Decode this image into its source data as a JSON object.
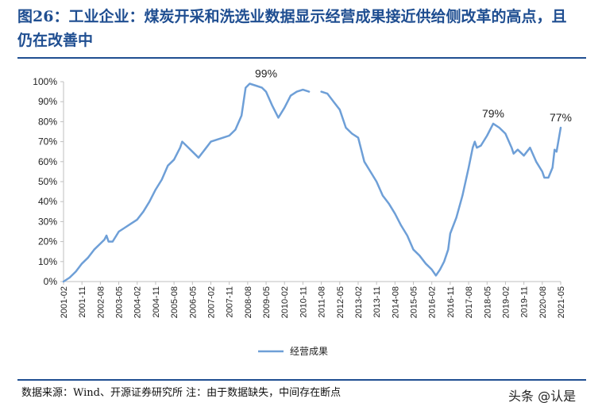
{
  "header": {
    "title_line1": "图26：工业企业：煤炭开采和洗选业数据显示经营成果接近供给侧改革的高点，且",
    "title_line2": "仍在改善中"
  },
  "footer": {
    "source": "数据来源：Wind、开源证券研究所 注：由于数据缺失，中间存在断点",
    "watermark": "头条 @认是"
  },
  "colors": {
    "line": "#6e9fd7",
    "title": "#1f4e91",
    "axis": "#bfbfbf"
  },
  "chart_data": {
    "type": "line",
    "title": "",
    "xlabel": "",
    "ylabel": "",
    "ylim": [
      0,
      100
    ],
    "ytick_labels": [
      "0%",
      "10%",
      "20%",
      "30%",
      "40%",
      "50%",
      "60%",
      "70%",
      "80%",
      "90%",
      "100%"
    ],
    "xtick_labels": [
      "2001-02",
      "2001-11",
      "2002-08",
      "2003-05",
      "2004-02",
      "2004-11",
      "2005-08",
      "2006-05",
      "2007-02",
      "2007-11",
      "2008-08",
      "2009-05",
      "2010-02",
      "2010-11",
      "2011-08",
      "2012-05",
      "2013-02",
      "2013-11",
      "2014-08",
      "2015-05",
      "2016-02",
      "2016-11",
      "2017-08",
      "2018-05",
      "2019-02",
      "2019-11",
      "2020-08",
      "2021-05"
    ],
    "legend": [
      "经营成果"
    ],
    "legend_position": "bottom",
    "grid": false,
    "annotations": [
      {
        "text": "99%",
        "x": "2009-05",
        "y": 99
      },
      {
        "text": "79%",
        "x": "2018-08",
        "y": 79
      },
      {
        "text": "77%",
        "x": "2021-05",
        "y": 77
      }
    ],
    "series": [
      {
        "name": "经营成果",
        "segments": [
          [
            [
              "2001-02",
              0
            ],
            [
              "2001-05",
              2
            ],
            [
              "2001-08",
              5
            ],
            [
              "2001-11",
              9
            ],
            [
              "2002-02",
              12
            ],
            [
              "2002-05",
              16
            ],
            [
              "2002-08",
              19
            ],
            [
              "2002-10",
              21
            ],
            [
              "2002-11",
              23
            ],
            [
              "2002-12",
              20
            ],
            [
              "2003-02",
              20
            ],
            [
              "2003-05",
              25
            ],
            [
              "2003-08",
              27
            ],
            [
              "2003-11",
              29
            ],
            [
              "2004-02",
              31
            ],
            [
              "2004-05",
              35
            ],
            [
              "2004-08",
              40
            ],
            [
              "2004-11",
              46
            ],
            [
              "2005-02",
              51
            ],
            [
              "2005-05",
              58
            ],
            [
              "2005-08",
              61
            ],
            [
              "2005-11",
              67
            ],
            [
              "2005-12",
              70
            ],
            [
              "2006-02",
              68
            ],
            [
              "2006-05",
              65
            ],
            [
              "2006-08",
              62
            ],
            [
              "2006-11",
              66
            ],
            [
              "2007-02",
              70
            ],
            [
              "2007-05",
              71
            ],
            [
              "2007-08",
              72
            ],
            [
              "2007-11",
              73
            ],
            [
              "2008-02",
              76
            ],
            [
              "2008-05",
              83
            ],
            [
              "2008-07",
              97
            ],
            [
              "2008-09",
              99
            ],
            [
              "2008-12",
              98
            ],
            [
              "2009-03",
              97
            ],
            [
              "2009-05",
              95
            ],
            [
              "2009-08",
              88
            ],
            [
              "2009-11",
              82
            ],
            [
              "2010-02",
              87
            ],
            [
              "2010-05",
              93
            ],
            [
              "2010-08",
              95
            ],
            [
              "2010-11",
              96
            ],
            [
              "2011-02",
              95
            ]
          ],
          [
            [
              "2011-08",
              95
            ],
            [
              "2011-11",
              94
            ],
            [
              "2012-02",
              90
            ],
            [
              "2012-05",
              86
            ],
            [
              "2012-08",
              77
            ],
            [
              "2012-11",
              74
            ],
            [
              "2013-02",
              72
            ],
            [
              "2013-05",
              60
            ],
            [
              "2013-08",
              55
            ],
            [
              "2013-11",
              50
            ],
            [
              "2014-02",
              43
            ],
            [
              "2014-05",
              39
            ],
            [
              "2014-08",
              34
            ],
            [
              "2014-11",
              28
            ],
            [
              "2015-02",
              23
            ],
            [
              "2015-05",
              16
            ],
            [
              "2015-08",
              13
            ],
            [
              "2015-11",
              9
            ],
            [
              "2016-02",
              6
            ],
            [
              "2016-04",
              3
            ],
            [
              "2016-06",
              6
            ],
            [
              "2016-08",
              10
            ],
            [
              "2016-10",
              16
            ],
            [
              "2016-11",
              24
            ],
            [
              "2017-02",
              32
            ],
            [
              "2017-05",
              43
            ],
            [
              "2017-08",
              57
            ],
            [
              "2017-10",
              67
            ],
            [
              "2017-11",
              70
            ],
            [
              "2017-12",
              67
            ],
            [
              "2018-02",
              68
            ],
            [
              "2018-05",
              73
            ],
            [
              "2018-08",
              79
            ],
            [
              "2018-11",
              77
            ],
            [
              "2019-02",
              74
            ],
            [
              "2019-05",
              67
            ],
            [
              "2019-06",
              64
            ],
            [
              "2019-08",
              66
            ],
            [
              "2019-11",
              63
            ],
            [
              "2020-02",
              67
            ],
            [
              "2020-05",
              60
            ],
            [
              "2020-08",
              55
            ],
            [
              "2020-09",
              52
            ],
            [
              "2020-11",
              52
            ],
            [
              "2021-01",
              57
            ],
            [
              "2021-02",
              66
            ],
            [
              "2021-03",
              65
            ],
            [
              "2021-05",
              77
            ]
          ]
        ]
      }
    ]
  }
}
